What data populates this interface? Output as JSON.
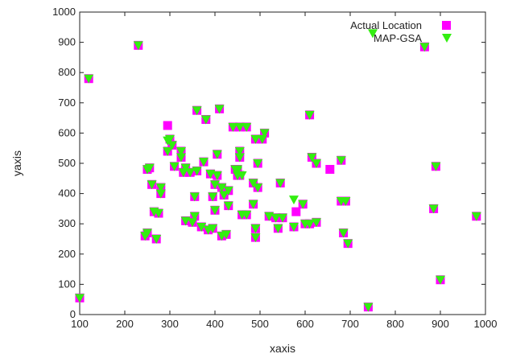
{
  "chart_data": {
    "type": "scatter",
    "xlabel": "xaxis",
    "ylabel": "yaxis",
    "xlim": [
      100,
      1000
    ],
    "ylim": [
      0,
      1000
    ],
    "xticks": [
      100,
      200,
      300,
      400,
      500,
      600,
      700,
      800,
      900,
      1000
    ],
    "yticks": [
      0,
      100,
      200,
      300,
      400,
      500,
      600,
      700,
      800,
      900,
      1000
    ],
    "legend_position": "top-right",
    "series": [
      {
        "name": "Actual Location",
        "marker": "square",
        "color": "#ff00ff",
        "points": [
          [
            100,
            55
          ],
          [
            120,
            780
          ],
          [
            230,
            890
          ],
          [
            295,
            625
          ],
          [
            865,
            885
          ],
          [
            890,
            490
          ],
          [
            885,
            350
          ],
          [
            980,
            325
          ],
          [
            900,
            115
          ],
          [
            740,
            25
          ],
          [
            695,
            235
          ],
          [
            610,
            660
          ],
          [
            615,
            520
          ],
          [
            625,
            500
          ],
          [
            680,
            510
          ],
          [
            680,
            375
          ],
          [
            690,
            375
          ],
          [
            685,
            270
          ],
          [
            610,
            300
          ],
          [
            625,
            305
          ],
          [
            595,
            365
          ],
          [
            580,
            340
          ],
          [
            545,
            435
          ],
          [
            550,
            320
          ],
          [
            520,
            325
          ],
          [
            505,
            580
          ],
          [
            510,
            600
          ],
          [
            495,
            500
          ],
          [
            490,
            580
          ],
          [
            485,
            435
          ],
          [
            495,
            420
          ],
          [
            485,
            365
          ],
          [
            490,
            285
          ],
          [
            490,
            255
          ],
          [
            470,
            620
          ],
          [
            455,
            540
          ],
          [
            455,
            520
          ],
          [
            455,
            460
          ],
          [
            460,
            330
          ],
          [
            455,
            620
          ],
          [
            450,
            480
          ],
          [
            450,
            475
          ],
          [
            440,
            620
          ],
          [
            445,
            480
          ],
          [
            430,
            410
          ],
          [
            430,
            360
          ],
          [
            425,
            265
          ],
          [
            420,
            395
          ],
          [
            415,
            420
          ],
          [
            415,
            260
          ],
          [
            410,
            680
          ],
          [
            405,
            530
          ],
          [
            405,
            460
          ],
          [
            400,
            430
          ],
          [
            400,
            345
          ],
          [
            395,
            390
          ],
          [
            395,
            285
          ],
          [
            390,
            465
          ],
          [
            385,
            280
          ],
          [
            380,
            645
          ],
          [
            375,
            505
          ],
          [
            370,
            290
          ],
          [
            360,
            675
          ],
          [
            360,
            475
          ],
          [
            355,
            390
          ],
          [
            355,
            325
          ],
          [
            350,
            305
          ],
          [
            345,
            470
          ],
          [
            335,
            485
          ],
          [
            335,
            310
          ],
          [
            325,
            540
          ],
          [
            325,
            520
          ],
          [
            310,
            490
          ],
          [
            305,
            560
          ],
          [
            300,
            580
          ],
          [
            295,
            540
          ],
          [
            280,
            420
          ],
          [
            280,
            400
          ],
          [
            275,
            335
          ],
          [
            270,
            250
          ],
          [
            265,
            340
          ],
          [
            260,
            430
          ],
          [
            255,
            485
          ],
          [
            250,
            480
          ],
          [
            250,
            270
          ],
          [
            245,
            260
          ],
          [
            600,
            300
          ],
          [
            575,
            290
          ],
          [
            540,
            285
          ],
          [
            450,
            460
          ],
          [
            330,
            470
          ],
          [
            470,
            330
          ],
          [
            535,
            320
          ],
          [
            655,
            480
          ]
        ]
      },
      {
        "name": "MAP-GSA",
        "marker": "triangle",
        "color": "#33ee11",
        "points": [
          [
            100,
            55
          ],
          [
            120,
            780
          ],
          [
            230,
            890
          ],
          [
            295,
            575
          ],
          [
            865,
            885
          ],
          [
            890,
            490
          ],
          [
            885,
            350
          ],
          [
            980,
            325
          ],
          [
            900,
            115
          ],
          [
            740,
            25
          ],
          [
            695,
            235
          ],
          [
            610,
            660
          ],
          [
            615,
            520
          ],
          [
            625,
            500
          ],
          [
            680,
            510
          ],
          [
            680,
            375
          ],
          [
            690,
            375
          ],
          [
            685,
            270
          ],
          [
            610,
            300
          ],
          [
            625,
            305
          ],
          [
            595,
            365
          ],
          [
            575,
            380
          ],
          [
            545,
            435
          ],
          [
            550,
            320
          ],
          [
            520,
            325
          ],
          [
            505,
            580
          ],
          [
            510,
            600
          ],
          [
            495,
            500
          ],
          [
            490,
            580
          ],
          [
            485,
            435
          ],
          [
            495,
            420
          ],
          [
            485,
            365
          ],
          [
            490,
            285
          ],
          [
            490,
            255
          ],
          [
            470,
            620
          ],
          [
            455,
            540
          ],
          [
            455,
            520
          ],
          [
            460,
            460
          ],
          [
            460,
            330
          ],
          [
            455,
            620
          ],
          [
            450,
            480
          ],
          [
            450,
            475
          ],
          [
            440,
            620
          ],
          [
            445,
            480
          ],
          [
            430,
            410
          ],
          [
            430,
            360
          ],
          [
            425,
            265
          ],
          [
            420,
            395
          ],
          [
            415,
            420
          ],
          [
            415,
            260
          ],
          [
            410,
            680
          ],
          [
            405,
            530
          ],
          [
            405,
            460
          ],
          [
            400,
            430
          ],
          [
            400,
            345
          ],
          [
            395,
            390
          ],
          [
            395,
            285
          ],
          [
            390,
            465
          ],
          [
            385,
            280
          ],
          [
            380,
            645
          ],
          [
            375,
            505
          ],
          [
            370,
            290
          ],
          [
            360,
            675
          ],
          [
            360,
            475
          ],
          [
            355,
            390
          ],
          [
            355,
            325
          ],
          [
            350,
            305
          ],
          [
            345,
            470
          ],
          [
            335,
            485
          ],
          [
            335,
            310
          ],
          [
            325,
            540
          ],
          [
            325,
            520
          ],
          [
            310,
            490
          ],
          [
            305,
            560
          ],
          [
            300,
            580
          ],
          [
            295,
            540
          ],
          [
            280,
            420
          ],
          [
            280,
            400
          ],
          [
            275,
            335
          ],
          [
            270,
            250
          ],
          [
            265,
            340
          ],
          [
            260,
            430
          ],
          [
            255,
            485
          ],
          [
            250,
            480
          ],
          [
            250,
            270
          ],
          [
            245,
            260
          ],
          [
            600,
            300
          ],
          [
            575,
            290
          ],
          [
            540,
            285
          ],
          [
            450,
            460
          ],
          [
            330,
            470
          ],
          [
            470,
            330
          ],
          [
            535,
            320
          ],
          [
            750,
            930
          ]
        ]
      }
    ]
  }
}
